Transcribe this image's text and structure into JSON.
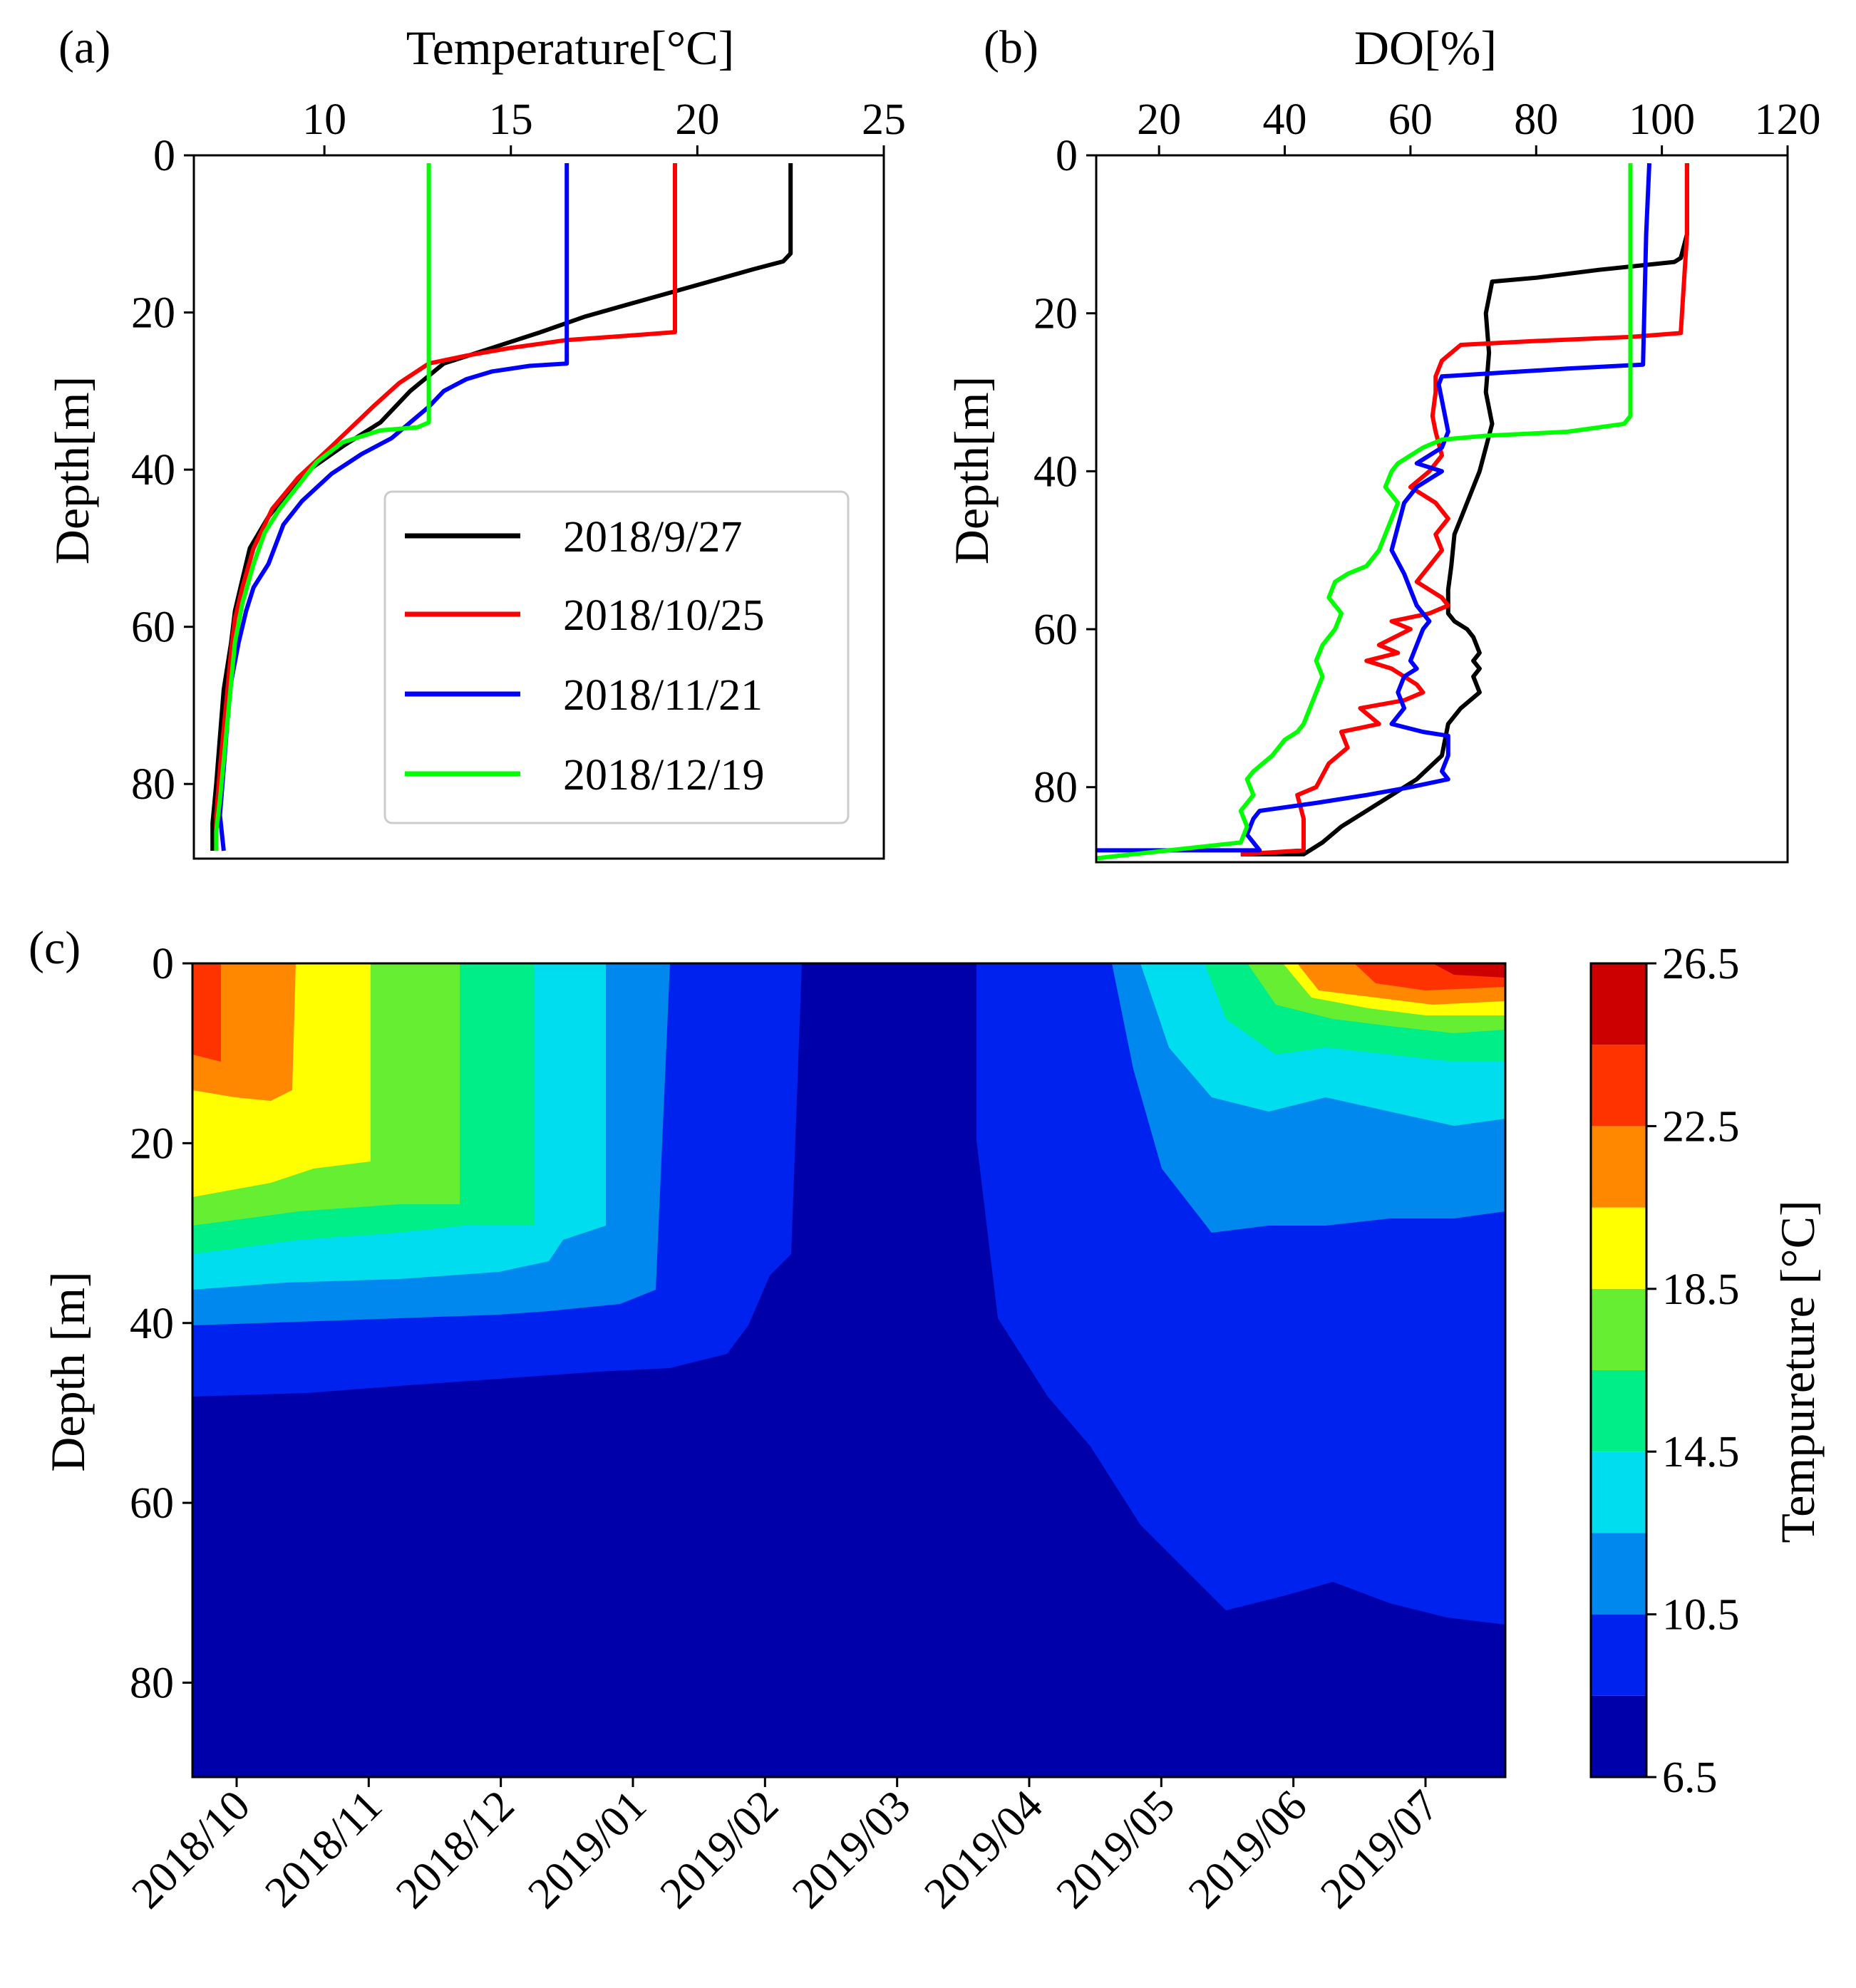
{
  "colors": {
    "black": "#000000",
    "red": "#ff0000",
    "blue": "#0000ff",
    "green": "#00ff00"
  },
  "chart_data": [
    {
      "type": "line",
      "panel_label": "(a)",
      "title": "",
      "xlabel": "Temperature[°C]",
      "ylabel": "Depth[m]",
      "xlim": [
        6.5,
        25
      ],
      "ylim": [
        89.5,
        0
      ],
      "xticks": [
        10,
        15,
        20,
        25
      ],
      "yticks": [
        0,
        20,
        40,
        60,
        80
      ],
      "legend_position": "center-right",
      "series": [
        {
          "name": "2018/9/27",
          "color": "#000000",
          "x": [
            22.5,
            22.5,
            22.3,
            21.5,
            20.0,
            18.5,
            17.0,
            15.8,
            14.5,
            13.2,
            12.3,
            11.5,
            10.5,
            9.6,
            9.0,
            8.5,
            8.0,
            7.8,
            7.6,
            7.5,
            7.3,
            7.2,
            7.1,
            7.0,
            7.0
          ],
          "y": [
            1,
            12.5,
            13.5,
            14.5,
            16.5,
            18.5,
            20.5,
            22.5,
            24.5,
            26.5,
            30,
            34,
            37,
            40,
            43,
            46,
            50,
            54,
            58,
            62,
            68,
            74,
            80,
            85,
            88.5
          ]
        },
        {
          "name": "2018/10/25",
          "color": "#ff0000",
          "x": [
            19.4,
            19.4,
            18.0,
            16.5,
            15.0,
            13.8,
            12.8,
            12.0,
            11.3,
            10.2,
            9.3,
            8.6,
            8.1,
            7.8,
            7.6,
            7.5,
            7.4,
            7.3,
            7.2,
            7.1,
            7.1
          ],
          "y": [
            1,
            22.5,
            23.0,
            23.5,
            24.5,
            25.5,
            26.5,
            29.0,
            32.0,
            37.0,
            41.0,
            45.0,
            50,
            55,
            59,
            63,
            68,
            73,
            78,
            84,
            88.5
          ]
        },
        {
          "name": "2018/11/21",
          "color": "#0000ff",
          "x": [
            16.5,
            16.5,
            15.5,
            14.5,
            13.8,
            13.2,
            12.8,
            12.3,
            11.8,
            11.0,
            10.2,
            9.4,
            8.9,
            8.5,
            8.1,
            7.9,
            7.7,
            7.5,
            7.4,
            7.3,
            7.2,
            7.3
          ],
          "y": [
            1,
            26.5,
            26.8,
            27.5,
            28.5,
            30.0,
            32.0,
            34.0,
            36.0,
            38.0,
            40.5,
            44.0,
            47.0,
            52.0,
            55.0,
            58.0,
            62.0,
            67.0,
            72.0,
            78.0,
            84.0,
            88.5
          ]
        },
        {
          "name": "2018/12/19",
          "color": "#00ff00",
          "x": [
            12.8,
            12.8,
            12.5,
            11.5,
            10.5,
            9.8,
            9.3,
            8.8,
            8.4,
            8.1,
            7.8,
            7.6,
            7.5,
            7.4,
            7.3,
            7.2,
            7.1,
            7.1
          ],
          "y": [
            1,
            34.0,
            34.6,
            35.0,
            36.5,
            39.0,
            42.0,
            45.0,
            48.0,
            52.0,
            57.0,
            62.0,
            67.0,
            72.0,
            77.0,
            82.0,
            86.0,
            88.5
          ]
        }
      ]
    },
    {
      "type": "line",
      "panel_label": "(b)",
      "title": "",
      "xlabel": "DO[%]",
      "ylabel": "Depth[m]",
      "xlim": [
        10,
        120
      ],
      "ylim": [
        89.5,
        0
      ],
      "xticks": [
        20,
        40,
        60,
        80,
        100,
        120
      ],
      "yticks": [
        0,
        20,
        40,
        60,
        80
      ],
      "series": [
        {
          "name": "2018/9/27",
          "color": "#000000",
          "x": [
            104,
            104,
            103,
            102,
            90,
            80,
            73,
            72,
            72.5,
            72,
            72.5,
            73,
            72,
            71,
            70,
            69,
            68,
            67,
            66.5,
            66,
            66,
            67,
            69,
            70,
            71,
            70,
            71,
            70,
            71,
            68,
            66,
            65,
            61,
            57,
            53,
            49,
            46,
            44,
            43,
            33
          ],
          "y": [
            1,
            10,
            13,
            13.5,
            14.5,
            15.5,
            16,
            20,
            25,
            30,
            32,
            34,
            37,
            40,
            42,
            44,
            46,
            48,
            52,
            55,
            58,
            59,
            60,
            61,
            63,
            64,
            65,
            66,
            68,
            70,
            72,
            76,
            79,
            81,
            83,
            85,
            87,
            88,
            88.5,
            88.5
          ]
        },
        {
          "name": "2018/10/25",
          "color": "#ff0000",
          "x": [
            104,
            104,
            103,
            95,
            80,
            68,
            65,
            64,
            64,
            63.5,
            64,
            65,
            63,
            60,
            64,
            66,
            64,
            65,
            63,
            61,
            65,
            66,
            63,
            57,
            60,
            55,
            58,
            53,
            57,
            59,
            61,
            62,
            59,
            52,
            55,
            49,
            50,
            47,
            45,
            42,
            43,
            43,
            33
          ],
          "y": [
            1,
            10,
            22.5,
            23,
            23.5,
            24,
            26,
            28,
            30,
            33,
            35,
            38,
            40,
            42,
            44,
            46,
            48,
            50,
            52,
            54,
            56,
            57,
            58,
            59,
            60,
            62,
            63,
            64,
            65,
            66,
            67,
            68,
            69,
            70,
            72,
            73,
            75,
            77,
            80,
            81,
            84,
            88,
            88.5
          ]
        },
        {
          "name": "2018/11/21",
          "color": "#0000ff",
          "x": [
            98,
            97.5,
            97,
            85,
            75,
            65,
            64.5,
            66,
            65,
            63,
            61,
            65,
            61,
            59,
            58,
            57,
            59,
            60,
            61,
            62,
            63,
            62,
            61,
            60,
            61,
            59,
            58,
            59,
            58,
            57,
            62,
            66,
            66,
            65,
            66,
            60,
            53,
            45,
            36,
            35,
            34,
            36,
            10
          ],
          "y": [
            1,
            10,
            26.5,
            27,
            27.5,
            28,
            29,
            35,
            37,
            38,
            39,
            40,
            42,
            44,
            47,
            50,
            53,
            55,
            57,
            58,
            59,
            60,
            62,
            64,
            65,
            66,
            68,
            70,
            71,
            72,
            73,
            73.5,
            76,
            78,
            79,
            80,
            81,
            82,
            83,
            84,
            86,
            88,
            88
          ]
        },
        {
          "name": "2018/12/19",
          "color": "#00ff00",
          "x": [
            95,
            95,
            95,
            94,
            85,
            72,
            65,
            62,
            60,
            58,
            57,
            56,
            58,
            57,
            56,
            55,
            53,
            50,
            48,
            47,
            49,
            48,
            46,
            45,
            46,
            45,
            44,
            43,
            42,
            40,
            38,
            35,
            34,
            35,
            33,
            34,
            33,
            10
          ],
          "y": [
            1,
            10,
            33,
            34,
            35,
            35.5,
            36,
            37,
            38,
            39,
            40,
            42,
            44,
            46,
            48,
            50,
            52,
            53,
            54,
            56,
            58,
            60,
            62,
            64,
            66,
            68,
            70,
            72,
            73,
            74,
            76,
            78,
            79,
            81,
            83,
            85,
            87,
            89
          ]
        }
      ]
    },
    {
      "type": "heatmap",
      "panel_label": "(c)",
      "title": "",
      "xlabel": "",
      "ylabel": "Depth [m]",
      "ylim": [
        90.5,
        0
      ],
      "yticks": [
        0,
        20,
        40,
        60,
        80
      ],
      "x_tick_labels": [
        "2018/10",
        "2018/11",
        "2018/12",
        "2019/01",
        "2019/02",
        "2019/03",
        "2019/04",
        "2019/05",
        "2019/06",
        "2019/07"
      ],
      "colorbar_label": "Tempureture [°C]",
      "colorbar_ticks": [
        "26.5",
        "22.5",
        "18.5",
        "14.5",
        "10.5",
        "6.5"
      ],
      "colorbar_bins": [
        {
          "low": 6.5,
          "high": 8.5,
          "color": "#0000aa"
        },
        {
          "low": 8.5,
          "high": 10.5,
          "color": "#0022ee"
        },
        {
          "low": 10.5,
          "high": 12.5,
          "color": "#0088ee"
        },
        {
          "low": 12.5,
          "high": 14.5,
          "color": "#00ddee"
        },
        {
          "low": 14.5,
          "high": 16.5,
          "color": "#00ee88"
        },
        {
          "low": 16.5,
          "high": 18.5,
          "color": "#66ee33"
        },
        {
          "low": 18.5,
          "high": 20.5,
          "color": "#ffff00"
        },
        {
          "low": 20.5,
          "high": 22.5,
          "color": "#ff8800"
        },
        {
          "low": 22.5,
          "high": 24.5,
          "color": "#ff3300"
        },
        {
          "low": 24.5,
          "high": 26.5,
          "color": "#cc0000"
        }
      ]
    }
  ]
}
